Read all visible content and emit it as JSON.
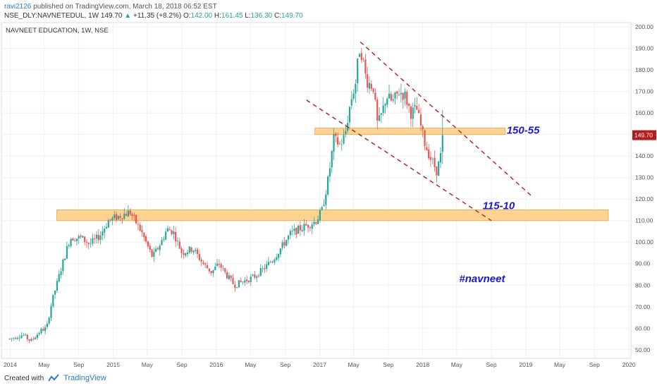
{
  "header": {
    "author": "ravi2126",
    "published": "published on TradingView.com, March 18, 2018 06:52 EST"
  },
  "ohlc": {
    "symbol": "NSE_DLY:NAVNETEDUL, 1W",
    "last": "149.70",
    "change": "+11.35 (+8.2%)",
    "o_label": "O:",
    "o": "142.00",
    "h_label": "H:",
    "h": "161.45",
    "l_label": "L:",
    "l": "136.30",
    "c_label": "C:",
    "c": "149.70"
  },
  "footer": {
    "created_with": "Created with",
    "brand": "TradingView"
  },
  "colors": {
    "up": "#26a69a",
    "down": "#ef5350",
    "zone_fill": "#ffcc80",
    "zone_stroke": "#f0a040",
    "trendline": "#b71c1c",
    "annotation": "#1a1acc",
    "price_tag": "#b71c1c",
    "grid": "#eef0f4"
  },
  "chart_data": {
    "type": "candlestick",
    "title": "NAVNEET EDUCATION, 1W, NSE",
    "ylim": [
      46,
      202
    ],
    "y_ticks": [
      "200.00",
      "190.00",
      "180.00",
      "170.00",
      "160.00",
      "150.00",
      "140.00",
      "130.00",
      "120.00",
      "110.00",
      "100.00",
      "90.00",
      "80.00",
      "70.00",
      "60.00",
      "50.00"
    ],
    "x_ticks": [
      "2014",
      "May",
      "Sep",
      "2015",
      "May",
      "Sep",
      "2016",
      "May",
      "Sep",
      "2017",
      "May",
      "Sep",
      "2018",
      "May",
      "Sep",
      "2019",
      "May",
      "Sep",
      "2020"
    ],
    "last_price_tag": "149.70",
    "price_path": [
      [
        "2013-12-30",
        55
      ],
      [
        "2014-02-15",
        57
      ],
      [
        "2014-03-15",
        54
      ],
      [
        "2014-04-20",
        59
      ],
      [
        "2014-05-10",
        60
      ],
      [
        "2014-05-28",
        72
      ],
      [
        "2014-07-01",
        88
      ],
      [
        "2014-08-01",
        102
      ],
      [
        "2014-09-10",
        102
      ],
      [
        "2014-10-10",
        99
      ],
      [
        "2014-11-15",
        103
      ],
      [
        "2014-12-15",
        110
      ],
      [
        "2015-01-20",
        112
      ],
      [
        "2015-03-01",
        114
      ],
      [
        "2015-04-10",
        105
      ],
      [
        "2015-05-20",
        93
      ],
      [
        "2015-06-20",
        100
      ],
      [
        "2015-07-10",
        106
      ],
      [
        "2015-08-01",
        105
      ],
      [
        "2015-09-01",
        95
      ],
      [
        "2015-10-10",
        97
      ],
      [
        "2015-11-15",
        90
      ],
      [
        "2015-12-15",
        86
      ],
      [
        "2016-01-10",
        90
      ],
      [
        "2016-02-10",
        84
      ],
      [
        "2016-03-05",
        80
      ],
      [
        "2016-04-10",
        82
      ],
      [
        "2016-05-15",
        84
      ],
      [
        "2016-06-20",
        88
      ],
      [
        "2016-07-20",
        92
      ],
      [
        "2016-08-20",
        98
      ],
      [
        "2016-09-20",
        104
      ],
      [
        "2016-10-20",
        106
      ],
      [
        "2016-11-20",
        108
      ],
      [
        "2016-12-20",
        110
      ],
      [
        "2017-01-10",
        115
      ],
      [
        "2017-02-01",
        130
      ],
      [
        "2017-02-20",
        148
      ],
      [
        "2017-03-15",
        145
      ],
      [
        "2017-04-01",
        150
      ],
      [
        "2017-04-20",
        165
      ],
      [
        "2017-05-10",
        175
      ],
      [
        "2017-05-20",
        190
      ],
      [
        "2017-06-01",
        187
      ],
      [
        "2017-06-15",
        175
      ],
      [
        "2017-07-10",
        172
      ],
      [
        "2017-07-25",
        154
      ],
      [
        "2017-08-10",
        160
      ],
      [
        "2017-08-25",
        168
      ],
      [
        "2017-09-15",
        165
      ],
      [
        "2017-10-10",
        170
      ],
      [
        "2017-10-30",
        168
      ],
      [
        "2017-11-20",
        160
      ],
      [
        "2017-12-10",
        162
      ],
      [
        "2018-01-10",
        145
      ],
      [
        "2018-02-01",
        138
      ],
      [
        "2018-02-20",
        133
      ],
      [
        "2018-03-05",
        140
      ],
      [
        "2018-03-12",
        149.7
      ]
    ],
    "zones": [
      {
        "label": "150-55",
        "y_bottom": 150,
        "y_top": 153,
        "x_start": "2016-12-15",
        "x_end": "2018-10-20"
      },
      {
        "label": "115-10",
        "y_bottom": 110,
        "y_top": 115,
        "x_start": "2014-06-15",
        "x_end": "2019-10-20"
      }
    ],
    "trendlines": [
      {
        "from": [
          "2017-05-25",
          193
        ],
        "to": [
          "2019-01-25",
          121
        ]
      },
      {
        "from": [
          "2016-11-15",
          166
        ],
        "to": [
          "2018-09-01",
          110
        ]
      }
    ],
    "annotations": [
      {
        "text": "150-55",
        "at": [
          "2018-10-25",
          152
        ]
      },
      {
        "text": "115-10",
        "at": [
          "2018-08-01",
          117
        ]
      },
      {
        "text": "#navneet",
        "at": [
          "2018-05-10",
          83
        ]
      }
    ]
  }
}
